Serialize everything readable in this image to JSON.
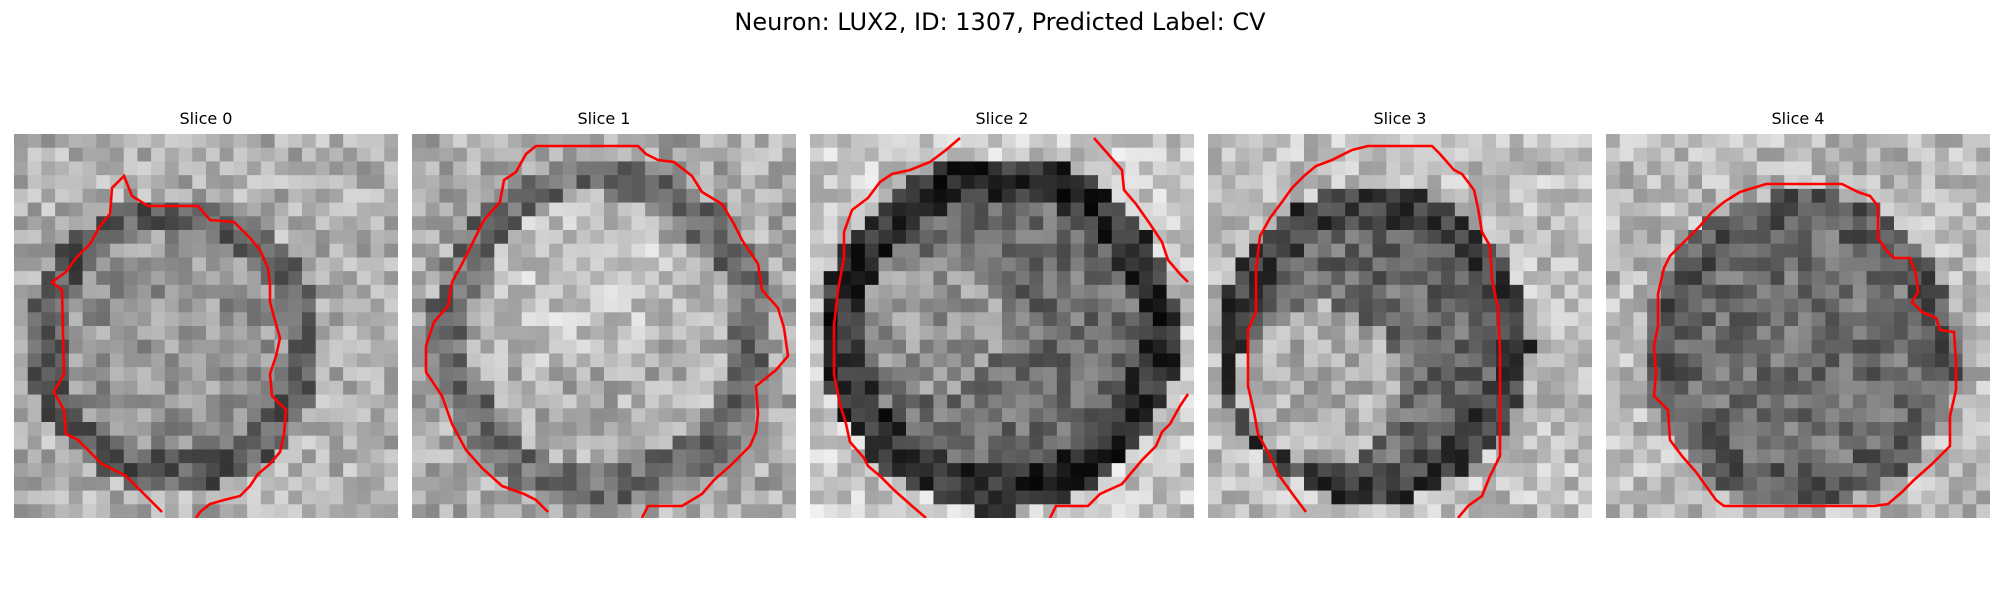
{
  "figure": {
    "title": "Neuron: LUX2, ID: 1307, Predicted Label: CV"
  },
  "panels": [
    {
      "title": "Slice 0"
    },
    {
      "title": "Slice 1"
    },
    {
      "title": "Slice 2"
    },
    {
      "title": "Slice 3"
    },
    {
      "title": "Slice 4"
    }
  ],
  "colors": {
    "contour": "#ff0000",
    "background": "#ffffff"
  }
}
